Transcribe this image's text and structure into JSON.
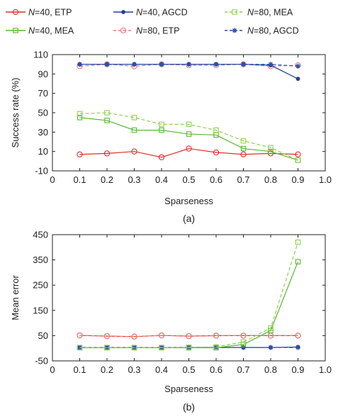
{
  "legend": [
    {
      "n_label": "N",
      "text": "=40, ETP",
      "series": "n40_etp"
    },
    {
      "n_label": "N",
      "text": "=40, AGCD",
      "series": "n40_agcd"
    },
    {
      "n_label": "N",
      "text": "=80, MEA",
      "series": "n80_mea"
    },
    {
      "n_label": "N",
      "text": "=40, MEA",
      "series": "n40_mea"
    },
    {
      "n_label": "N",
      "text": "=80, ETP",
      "series": "n80_etp"
    },
    {
      "n_label": "N",
      "text": "=80, AGCD",
      "series": "n80_agcd"
    }
  ],
  "styles": {
    "n40_etp": {
      "color": "#e0302a",
      "marker": "circle",
      "dash": false
    },
    "n80_etp": {
      "color": "#ef7a72",
      "marker": "circle",
      "dash": true
    },
    "n40_agcd": {
      "color": "#1f3f9a",
      "marker": "dot",
      "dash": false
    },
    "n80_agcd": {
      "color": "#2a4fb0",
      "marker": "star",
      "dash": true
    },
    "n40_mea": {
      "color": "#5ab82e",
      "marker": "square",
      "dash": false
    },
    "n80_mea": {
      "color": "#8fd050",
      "marker": "square",
      "dash": true
    }
  },
  "chart_data": [
    {
      "type": "line",
      "sublabel": "(a)",
      "xlabel": "Sparseness",
      "ylabel": "Success rate (%)",
      "xlim": [
        0,
        1.0
      ],
      "ylim": [
        -10,
        110
      ],
      "xticks": [
        "0",
        "0.1",
        "0.2",
        "0.3",
        "0.4",
        "0.5",
        "0.6",
        "0.7",
        "0.8",
        "0.9",
        "1.0"
      ],
      "yticks": [
        "-10",
        "10",
        "30",
        "50",
        "70",
        "90",
        "110"
      ],
      "x": [
        0.1,
        0.2,
        0.3,
        0.4,
        0.5,
        0.6,
        0.7,
        0.8,
        0.9
      ],
      "series": [
        {
          "key": "n40_etp",
          "values": [
            7,
            8,
            10,
            4,
            13,
            9,
            7,
            8,
            7
          ]
        },
        {
          "key": "n80_etp",
          "values": [
            98,
            100,
            98,
            100,
            99,
            99,
            100,
            98,
            99
          ]
        },
        {
          "key": "n40_agcd",
          "values": [
            100,
            100,
            100,
            100,
            100,
            100,
            100,
            99,
            85
          ]
        },
        {
          "key": "n80_agcd",
          "values": [
            100,
            100,
            100,
            100,
            100,
            100,
            100,
            100,
            98
          ]
        },
        {
          "key": "n40_mea",
          "values": [
            45,
            42,
            32,
            32,
            28,
            27,
            13,
            10,
            1
          ]
        },
        {
          "key": "n80_mea",
          "values": [
            49,
            50,
            45,
            38,
            38,
            32,
            21,
            14,
            1
          ]
        }
      ]
    },
    {
      "type": "line",
      "sublabel": "(b)",
      "xlabel": "Sparseness",
      "ylabel": "Mean error",
      "xlim": [
        0,
        1.0
      ],
      "ylim": [
        -50,
        450
      ],
      "xticks": [
        "0",
        "0.1",
        "0.2",
        "0.3",
        "0.4",
        "0.5",
        "0.6",
        "0.7",
        "0.8",
        "0.9",
        "1.0"
      ],
      "yticks": [
        "-50",
        "50",
        "150",
        "250",
        "350",
        "450"
      ],
      "x": [
        0.1,
        0.2,
        0.3,
        0.4,
        0.5,
        0.6,
        0.7,
        0.8,
        0.9
      ],
      "series": [
        {
          "key": "n40_etp",
          "values": [
            51,
            48,
            46,
            51,
            48,
            50,
            50,
            50,
            50
          ]
        },
        {
          "key": "n80_etp",
          "values": [
            51,
            48,
            46,
            51,
            48,
            50,
            50,
            50,
            50
          ]
        },
        {
          "key": "n40_agcd",
          "values": [
            3,
            3,
            3,
            3,
            3,
            3,
            3,
            3,
            5
          ]
        },
        {
          "key": "n80_agcd",
          "values": [
            3,
            3,
            3,
            3,
            3,
            3,
            3,
            3,
            3
          ]
        },
        {
          "key": "n40_mea",
          "values": [
            2,
            2,
            2,
            2,
            2,
            2,
            15,
            70,
            343
          ]
        },
        {
          "key": "n80_mea",
          "values": [
            3,
            3,
            3,
            3,
            4,
            5,
            25,
            80,
            420
          ]
        }
      ]
    }
  ]
}
